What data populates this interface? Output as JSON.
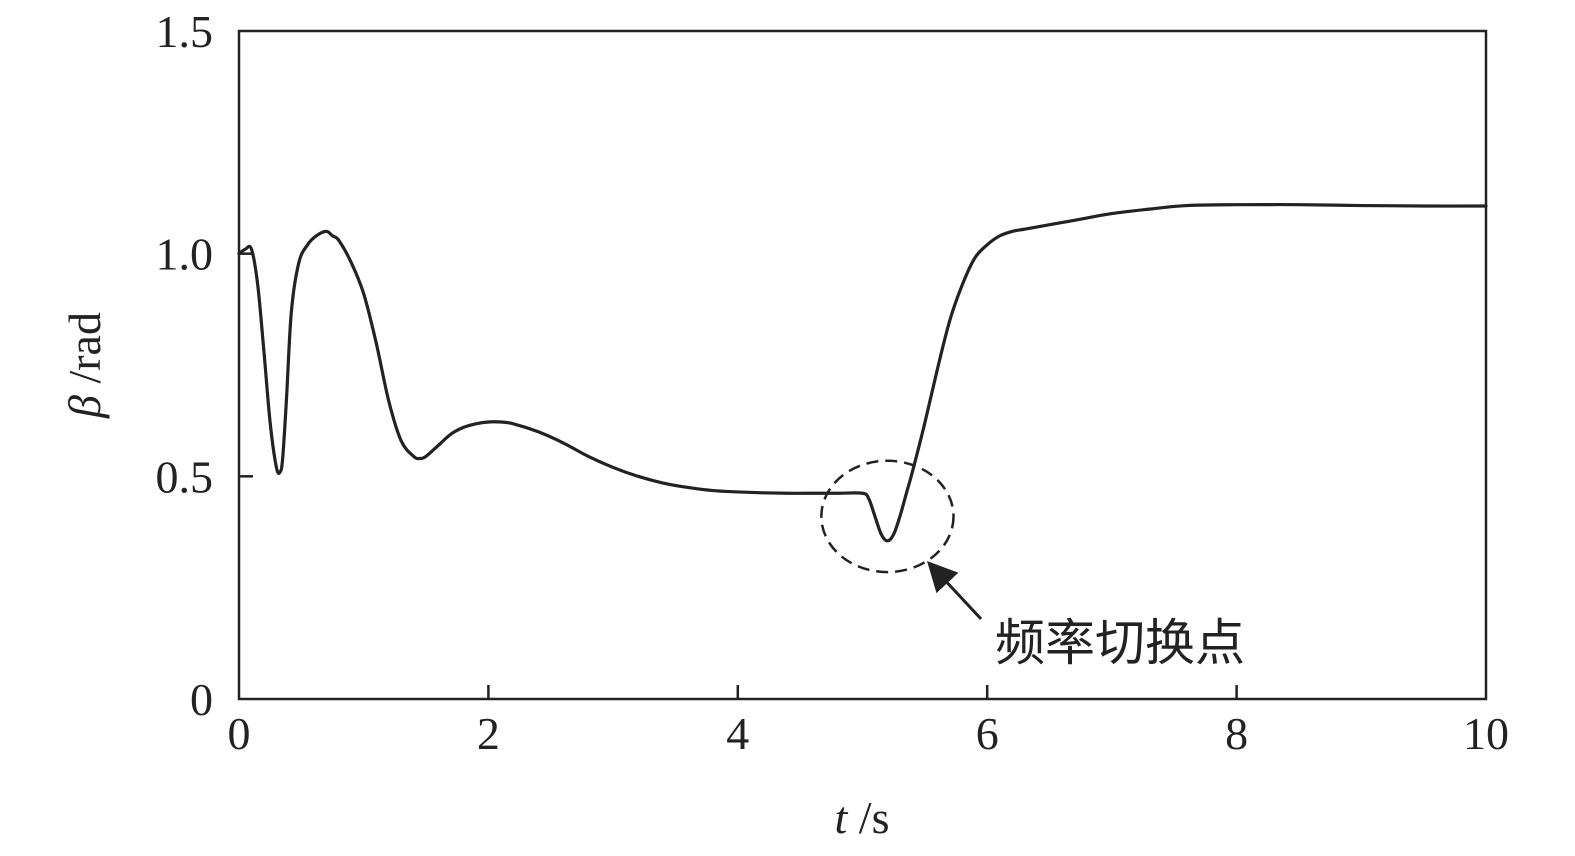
{
  "chart_data": {
    "type": "line",
    "title": "",
    "xlabel": {
      "var": "t",
      "unit": " /s"
    },
    "ylabel": {
      "var": "β",
      "unit": " /rad"
    },
    "xlim": [
      0,
      10
    ],
    "ylim": [
      0,
      1.5
    ],
    "x_ticks": [
      0,
      2,
      4,
      6,
      8,
      10
    ],
    "x_tick_labels": [
      "0",
      "2",
      "4",
      "6",
      "8",
      "10"
    ],
    "y_ticks": [
      0,
      0.5,
      1.0,
      1.5
    ],
    "y_tick_labels": [
      "0",
      "0.5",
      "1.0",
      "1.5"
    ],
    "grid": false,
    "legend": "none",
    "line_color": "#222222",
    "series": [
      {
        "x": [
          0,
          0.05,
          0.1,
          0.15,
          0.2,
          0.25,
          0.3,
          0.33,
          0.35,
          0.38,
          0.42,
          0.48,
          0.55,
          0.62,
          0.7,
          0.75,
          0.8,
          0.9,
          1.0,
          1.1,
          1.2,
          1.3,
          1.4,
          1.45,
          1.5,
          1.6,
          1.7,
          1.8,
          1.9,
          2.0,
          2.1,
          2.2,
          2.4,
          2.6,
          2.8,
          3.0,
          3.2,
          3.4,
          3.6,
          3.8,
          4.0,
          4.2,
          4.4,
          4.6,
          4.8,
          5.0,
          5.05,
          5.1,
          5.15,
          5.2,
          5.25,
          5.3,
          5.35,
          5.4,
          5.5,
          5.6,
          5.7,
          5.8,
          5.9,
          6.0,
          6.1,
          6.2,
          6.3,
          6.5,
          6.7,
          7.0,
          7.3,
          7.6,
          8.0,
          8.5,
          9.0,
          9.5,
          10.0
        ],
        "y": [
          1.0,
          1.01,
          1.01,
          0.93,
          0.78,
          0.62,
          0.52,
          0.51,
          0.54,
          0.67,
          0.87,
          0.98,
          1.02,
          1.04,
          1.05,
          1.04,
          1.03,
          0.98,
          0.91,
          0.8,
          0.67,
          0.58,
          0.545,
          0.54,
          0.545,
          0.57,
          0.595,
          0.61,
          0.618,
          0.622,
          0.622,
          0.618,
          0.6,
          0.575,
          0.545,
          0.52,
          0.5,
          0.485,
          0.475,
          0.468,
          0.465,
          0.463,
          0.462,
          0.462,
          0.462,
          0.462,
          0.45,
          0.41,
          0.37,
          0.355,
          0.37,
          0.41,
          0.46,
          0.51,
          0.62,
          0.74,
          0.85,
          0.93,
          0.99,
          1.02,
          1.04,
          1.05,
          1.055,
          1.065,
          1.075,
          1.09,
          1.1,
          1.108,
          1.11,
          1.11,
          1.108,
          1.107,
          1.107
        ]
      }
    ],
    "annotation": {
      "text": "频率切换点",
      "circle_center": [
        5.2,
        0.41
      ],
      "circle_radius": [
        0.53,
        0.125
      ],
      "arrow_from": [
        5.95,
        0.18
      ],
      "arrow_to": [
        5.55,
        0.3
      ]
    }
  }
}
